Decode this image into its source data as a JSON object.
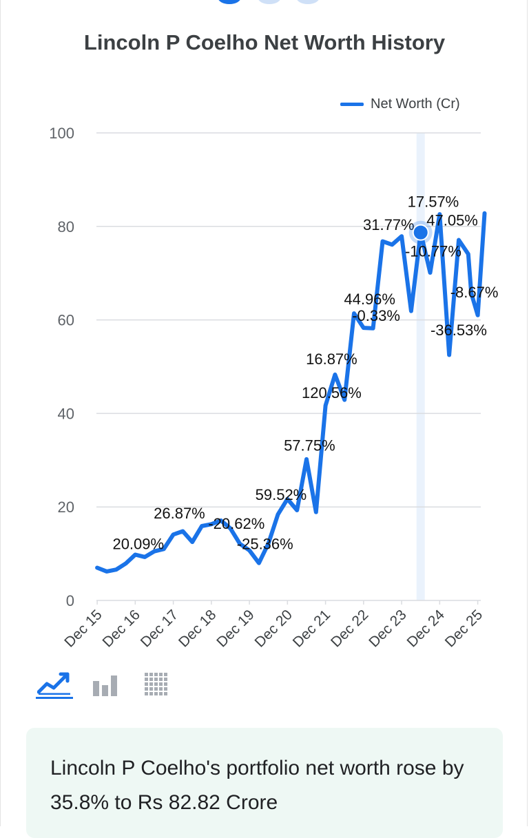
{
  "header": {
    "title": "Lincoln P Coelho Net Worth History"
  },
  "carousel": {
    "count": 3,
    "active_index": 0
  },
  "chart_controls": {
    "options": [
      "line-chart-icon",
      "bar-chart-icon",
      "table-icon"
    ],
    "selected": "line-chart-icon"
  },
  "summary": {
    "text": "Lincoln P Coelho's portfolio net worth rose by 35.8% to Rs 82.82 Crore"
  },
  "colors": {
    "accent": "#1a73e8",
    "highlight_band": "#eaf2fc",
    "summary_bg": "#eef8f4"
  },
  "chart_data": {
    "type": "line",
    "title": "Lincoln P Coelho Net Worth History",
    "legend_position": "top-right",
    "grid": true,
    "ylim": [
      0,
      100
    ],
    "yticks": [
      0,
      20,
      40,
      60,
      80,
      100
    ],
    "xlim": [
      2015.9,
      2026.0
    ],
    "x_tick_labels": [
      {
        "label": "Dec 15",
        "x": 2015.92
      },
      {
        "label": "Dec 16",
        "x": 2016.92
      },
      {
        "label": "Dec 17",
        "x": 2017.92
      },
      {
        "label": "Dec 18",
        "x": 2018.92
      },
      {
        "label": "Dec 19",
        "x": 2019.92
      },
      {
        "label": "Dec 20",
        "x": 2020.92
      },
      {
        "label": "Dec 21",
        "x": 2021.92
      },
      {
        "label": "Dec 22",
        "x": 2022.92
      },
      {
        "label": "Dec 23",
        "x": 2023.92
      },
      {
        "label": "Dec 24",
        "x": 2024.92
      },
      {
        "label": "Dec 25",
        "x": 2025.92
      }
    ],
    "series": [
      {
        "name": "Net Worth (Cr)",
        "points": [
          [
            2015.92,
            7.0
          ],
          [
            2016.17,
            6.2
          ],
          [
            2016.42,
            6.6
          ],
          [
            2016.67,
            7.9
          ],
          [
            2016.92,
            9.8
          ],
          [
            2017.17,
            9.3
          ],
          [
            2017.42,
            10.5
          ],
          [
            2017.67,
            11.0
          ],
          [
            2017.92,
            14.1
          ],
          [
            2018.17,
            14.8
          ],
          [
            2018.42,
            12.5
          ],
          [
            2018.67,
            15.9
          ],
          [
            2018.92,
            16.3
          ],
          [
            2019.17,
            17.1
          ],
          [
            2019.42,
            15.4
          ],
          [
            2019.67,
            12.1
          ],
          [
            2019.92,
            10.7
          ],
          [
            2020.17,
            8.0
          ],
          [
            2020.42,
            12.2
          ],
          [
            2020.67,
            18.4
          ],
          [
            2020.92,
            21.7
          ],
          [
            2021.17,
            19.3
          ],
          [
            2021.42,
            30.2
          ],
          [
            2021.67,
            18.9
          ],
          [
            2021.92,
            41.7
          ],
          [
            2022.17,
            48.3
          ],
          [
            2022.42,
            42.9
          ],
          [
            2022.67,
            61.4
          ],
          [
            2022.92,
            58.3
          ],
          [
            2023.17,
            58.2
          ],
          [
            2023.42,
            76.8
          ],
          [
            2023.67,
            76.1
          ],
          [
            2023.92,
            77.9
          ],
          [
            2024.17,
            61.9
          ],
          [
            2024.42,
            78.7
          ],
          [
            2024.67,
            70.1
          ],
          [
            2024.92,
            82.6
          ],
          [
            2025.17,
            52.5
          ],
          [
            2025.42,
            77.1
          ],
          [
            2025.67,
            74.1
          ],
          [
            2025.75,
            65.7
          ],
          [
            2025.92,
            61.0
          ],
          [
            2026.1,
            82.8
          ]
        ]
      }
    ],
    "highlight": {
      "x": 2024.42,
      "y": 78.7
    },
    "annotations": [
      {
        "text": "20.09%",
        "x": 2017.0,
        "y": 11.0
      },
      {
        "text": "26.87%",
        "x": 2018.08,
        "y": 17.5
      },
      {
        "text": "-20.62%",
        "x": 2019.58,
        "y": 15.3
      },
      {
        "text": "-25.36%",
        "x": 2020.33,
        "y": 11.0
      },
      {
        "text": "59.52%",
        "x": 2020.75,
        "y": 21.5
      },
      {
        "text": "57.75%",
        "x": 2021.5,
        "y": 32.0
      },
      {
        "text": "120.56%",
        "x": 2022.08,
        "y": 43.3
      },
      {
        "text": "16.87%",
        "x": 2022.08,
        "y": 50.5
      },
      {
        "text": "-0.33%",
        "x": 2023.25,
        "y": 59.8
      },
      {
        "text": "44.96%",
        "x": 2023.08,
        "y": 63.3
      },
      {
        "text": "31.77%",
        "x": 2023.58,
        "y": 79.2
      },
      {
        "text": "17.57%",
        "x": 2024.75,
        "y": 84.2
      },
      {
        "text": "47.05%",
        "x": 2025.25,
        "y": 80.2
      },
      {
        "text": "-10.77%",
        "x": 2024.75,
        "y": 73.6
      },
      {
        "text": "-8.67%",
        "x": 2025.83,
        "y": 64.8
      },
      {
        "text": "-36.53%",
        "x": 2025.42,
        "y": 56.7
      }
    ]
  }
}
